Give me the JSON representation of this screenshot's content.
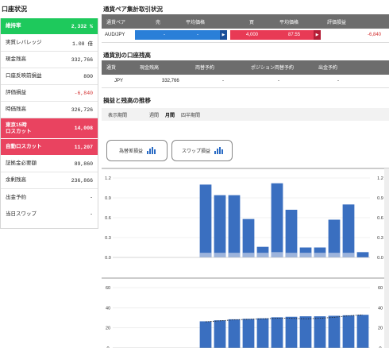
{
  "account": {
    "title": "口座状況",
    "rows": [
      {
        "label": "維持率",
        "value": "2,332 %",
        "style": "green"
      },
      {
        "label": "実質レバレッジ",
        "value": "1.08 倍",
        "style": "normal"
      },
      {
        "label": "現金残高",
        "value": "332,766",
        "style": "normal"
      },
      {
        "label": "口座反映前損益",
        "value": "800",
        "style": "normal"
      },
      {
        "label": "評価損益",
        "value": "-6,840",
        "style": "negative"
      },
      {
        "label": "時価残高",
        "value": "326,726",
        "style": "normal"
      },
      {
        "label": "東京15時\nロスカット",
        "value": "14,008",
        "style": "red-tall"
      },
      {
        "label": "自動ロスカット",
        "value": "11,207",
        "style": "red"
      },
      {
        "label": "証拠金必要額",
        "value": "89,860",
        "style": "normal"
      },
      {
        "label": "余剰残高",
        "value": "236,866",
        "style": "normal"
      },
      {
        "label": "出金予約",
        "value": "-",
        "style": "normal"
      },
      {
        "label": "当日スワップ",
        "value": "-",
        "style": "normal"
      }
    ]
  },
  "positions": {
    "title": "通貨ペア集計取引状況",
    "headers": {
      "pair": "通貨ペア",
      "sell": "売",
      "sell_avg": "平均価格",
      "buy": "買",
      "buy_avg": "平均価格",
      "pl": "評価損益"
    },
    "row": {
      "pair": "AUD/JPY",
      "sell": "-",
      "sell_avg": "-",
      "buy": "4,000",
      "buy_avg": "87.55",
      "pl": "-6,840"
    }
  },
  "balances": {
    "title": "通貨別の口座残高",
    "headers": {
      "currency": "通貨",
      "cash": "現金残高",
      "pos_reserve": "両替予約",
      "pos_exchange": "ポジション両替予約",
      "withdraw": "出金予約"
    },
    "row": {
      "currency": "JPY",
      "cash": "332,766",
      "pos_reserve": "-",
      "pos_exchange": "-",
      "withdraw": "-"
    }
  },
  "history": {
    "title": "損益と残高の推移",
    "period_label": "表示期間",
    "tabs": [
      "週間",
      "月間",
      "四半期間"
    ],
    "active_tab": "月間",
    "buttons": {
      "fx": "為替差損益",
      "swap": "スワップ損益"
    }
  },
  "colors": {
    "green": "#1ec95c",
    "red": "#e94360",
    "blue": "#2a7fd8",
    "bar_blue": "#3a6fc0",
    "bar_light": "#9db4dc"
  },
  "chart_data": [
    {
      "type": "bar",
      "yticks": [
        0.0,
        0.3,
        0.6,
        0.9,
        1.2
      ],
      "ylim": [
        0,
        1.2
      ],
      "values": [
        null,
        null,
        null,
        null,
        null,
        null,
        1.1,
        0.94,
        0.94,
        0.58,
        0.16,
        1.12,
        0.72,
        0.15,
        0.15,
        0.57,
        0.8,
        0.08
      ],
      "base_values": [
        null,
        null,
        null,
        null,
        null,
        null,
        0.07,
        0.07,
        0.07,
        0.07,
        0.07,
        0.08,
        0.07,
        0.07,
        0.07,
        0.07,
        0.07,
        0
      ]
    },
    {
      "type": "bar",
      "yticks": [
        0,
        20,
        40,
        60
      ],
      "ylim": [
        0,
        60
      ],
      "values": [
        null,
        null,
        null,
        null,
        null,
        null,
        26.5,
        27.5,
        28.5,
        29.0,
        29.5,
        30.5,
        31.0,
        31.5,
        31.5,
        32.0,
        32.5,
        33.0
      ],
      "line": [
        null,
        null,
        null,
        null,
        null,
        null,
        26.0,
        27.0,
        28.0,
        28.5,
        29.0,
        29.5,
        29.5,
        29.0,
        29.5,
        30.5,
        32.0,
        33.0
      ]
    }
  ]
}
